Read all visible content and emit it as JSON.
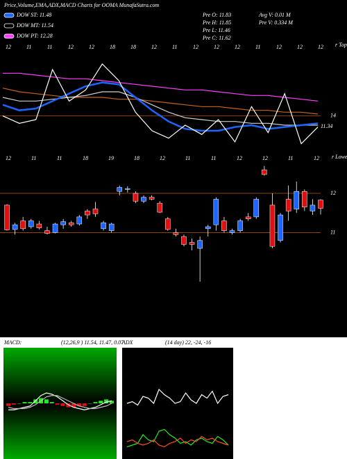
{
  "header": {
    "title": "Price,Volume,EMA,ADX,MACD Charts for OOMA MunafaSutra.com",
    "legend": [
      {
        "text": "DOW ST: 11.48",
        "color": "#1e64ff"
      },
      {
        "text": "DOW MT: 11.54",
        "color": "#000000"
      },
      {
        "text": "DOW PT: 12.28",
        "color": "#ff40ff"
      }
    ],
    "info": [
      "Pre O: 11.83",
      "Pre H: 11.85",
      "Pre L: 11.46",
      "Pre C: 11.62"
    ],
    "info2": [
      "Avg V: 0.01 M",
      "Pre V: 0.334 M"
    ],
    "dates_top": [
      "12",
      "11",
      "11",
      "12",
      "12",
      "18",
      "18",
      "12",
      "11",
      "12",
      "12",
      "12",
      "11",
      "12",
      "12",
      "12"
    ],
    "dates_mid": [
      "12",
      "11",
      "11",
      "18",
      "19",
      "18",
      "12",
      "11",
      "11",
      "12",
      "12",
      "11",
      "12"
    ],
    "tag_top": "r Topa",
    "tag_low": "r Lowes"
  },
  "chart_data": [
    {
      "type": "line",
      "ylim": [
        12,
        18
      ],
      "yticks": [
        14
      ],
      "last_label": {
        "value": 11.34,
        "label": "11.34"
      },
      "series": [
        {
          "color": "#ff40ff",
          "values": [
            16.3,
            16.3,
            16.2,
            16.1,
            16.0,
            16.0,
            15.9,
            15.8,
            15.7,
            15.6,
            15.5,
            15.4,
            15.4,
            15.3,
            15.2,
            15.1,
            15.1,
            15.0,
            14.9,
            14.8
          ]
        },
        {
          "color": "#c8641e",
          "values": [
            15.5,
            15.3,
            15.2,
            15.1,
            15.0,
            15.0,
            15.0,
            14.9,
            14.9,
            14.8,
            14.7,
            14.6,
            14.5,
            14.5,
            14.4,
            14.3,
            14.3,
            14.2,
            14.2,
            14.1
          ]
        },
        {
          "color": "#d0d0d0",
          "values": [
            15.0,
            14.8,
            14.8,
            14.9,
            15.0,
            15.1,
            15.3,
            15.3,
            15.0,
            14.6,
            14.2,
            13.9,
            13.8,
            13.7,
            13.7,
            13.6,
            13.6,
            13.5,
            13.5,
            13.5
          ]
        },
        {
          "color": "#1e64ff",
          "values": [
            14.6,
            14.3,
            14.4,
            14.8,
            15.2,
            15.6,
            15.8,
            15.7,
            15.0,
            14.3,
            13.7,
            13.3,
            13.2,
            13.2,
            13.4,
            13.5,
            13.3,
            13.4,
            13.5,
            13.6
          ]
        },
        {
          "color": "#ffffff",
          "values": [
            14.0,
            13.6,
            13.8,
            16.5,
            14.8,
            15.4,
            16.8,
            15.9,
            14.2,
            13.2,
            12.8,
            13.5,
            13.0,
            13.8,
            12.6,
            14.5,
            13.1,
            15.2,
            12.5,
            13.4
          ]
        }
      ]
    },
    {
      "type": "candlestick",
      "ylim": [
        8.6,
        12.85
      ],
      "yticks": [
        11,
        12
      ],
      "up_color": "#1e64ff",
      "down_color": "#e01010",
      "open": [
        11.7,
        11.08,
        11.3,
        11.15,
        11.22,
        11.05,
        11.0,
        11.2,
        11.25,
        11.22,
        11.55,
        11.6,
        11.1,
        11.05,
        12.05,
        12.1,
        12.0,
        11.8,
        11.9,
        11.75,
        11.35,
        11.0,
        10.9,
        10.75,
        10.6,
        11.1,
        11.2,
        11.3,
        11.0,
        11.05,
        11.4,
        11.4,
        12.6,
        11.7,
        10.8,
        11.85,
        11.6,
        12.05,
        11.55,
        11.83
      ],
      "high": [
        11.72,
        11.25,
        11.4,
        11.35,
        11.3,
        11.15,
        11.25,
        11.35,
        11.3,
        11.45,
        11.6,
        11.78,
        11.3,
        11.25,
        12.2,
        12.18,
        12.05,
        11.95,
        11.95,
        11.8,
        11.4,
        11.1,
        10.95,
        10.85,
        10.9,
        11.2,
        11.9,
        11.4,
        11.1,
        11.35,
        11.5,
        11.9,
        12.7,
        12.0,
        11.5,
        12.2,
        12.3,
        12.1,
        11.85,
        11.85
      ],
      "low": [
        11.05,
        10.95,
        11.05,
        11.1,
        11.08,
        10.95,
        10.98,
        11.1,
        11.15,
        11.18,
        11.35,
        11.4,
        11.05,
        11.0,
        11.95,
        12.02,
        11.75,
        11.75,
        11.82,
        11.5,
        11.05,
        10.9,
        10.65,
        10.55,
        9.75,
        10.9,
        11.05,
        11.0,
        10.95,
        11.0,
        11.3,
        11.35,
        12.45,
        10.6,
        10.75,
        11.3,
        11.5,
        11.55,
        11.45,
        11.46
      ],
      "close": [
        11.07,
        11.2,
        11.1,
        11.3,
        11.12,
        10.98,
        11.22,
        11.28,
        11.2,
        11.4,
        11.45,
        11.48,
        11.25,
        11.22,
        12.15,
        12.12,
        11.8,
        11.9,
        11.85,
        11.52,
        11.08,
        10.95,
        10.7,
        10.7,
        10.8,
        11.15,
        11.85,
        11.05,
        11.05,
        11.3,
        11.35,
        11.85,
        12.48,
        10.65,
        11.45,
        11.55,
        12.05,
        11.65,
        11.7,
        11.62
      ]
    },
    {
      "type": "macd",
      "title": "MACD:",
      "subtitle": "(12,26,9 ) 11.54, 11.47, 0.07",
      "ylim": [
        -0.4,
        0.4
      ],
      "histogram": [
        -0.02,
        -0.01,
        0,
        0.01,
        0.01,
        0.03,
        0.04,
        0.03,
        0.01,
        -0.01,
        -0.02,
        -0.03,
        -0.03,
        -0.02,
        -0.02,
        0,
        0.01,
        0.02,
        0.03,
        0.02
      ],
      "series": [
        {
          "color": "#ffffff",
          "values": [
            -0.05,
            -0.05,
            -0.04,
            -0.03,
            -0.02,
            0.02,
            0.06,
            0.08,
            0.07,
            0.05,
            0.02,
            -0.01,
            -0.03,
            -0.04,
            -0.05,
            -0.04,
            -0.03,
            -0.01,
            0.01,
            0.02
          ]
        },
        {
          "color": "#bbbbbb",
          "values": [
            -0.03,
            -0.04,
            -0.04,
            -0.04,
            -0.03,
            -0.01,
            0.02,
            0.05,
            0.06,
            0.06,
            0.04,
            0.02,
            0.0,
            -0.02,
            -0.03,
            -0.04,
            -0.04,
            -0.03,
            -0.02,
            0.0
          ]
        }
      ]
    },
    {
      "type": "adx",
      "title": "ADX",
      "subtitle": "(14 day) 22, -24, -16",
      "ylim": [
        0,
        60
      ],
      "series": [
        {
          "color": "#ffffff",
          "values": [
            30,
            31,
            29,
            34,
            33,
            30,
            38,
            35,
            33,
            30,
            31,
            36,
            32,
            30,
            35,
            33,
            37,
            30,
            34,
            35
          ]
        },
        {
          "color": "#22ee22",
          "values": [
            5,
            6,
            7,
            12,
            9,
            8,
            14,
            15,
            12,
            10,
            7,
            8,
            6,
            9,
            10,
            8,
            7,
            11,
            9,
            6
          ]
        },
        {
          "color": "#ff5020",
          "values": [
            8,
            9,
            7,
            6,
            7,
            9,
            6,
            5,
            7,
            8,
            10,
            7,
            9,
            8,
            11,
            9,
            10,
            8,
            7,
            6
          ]
        }
      ]
    }
  ]
}
